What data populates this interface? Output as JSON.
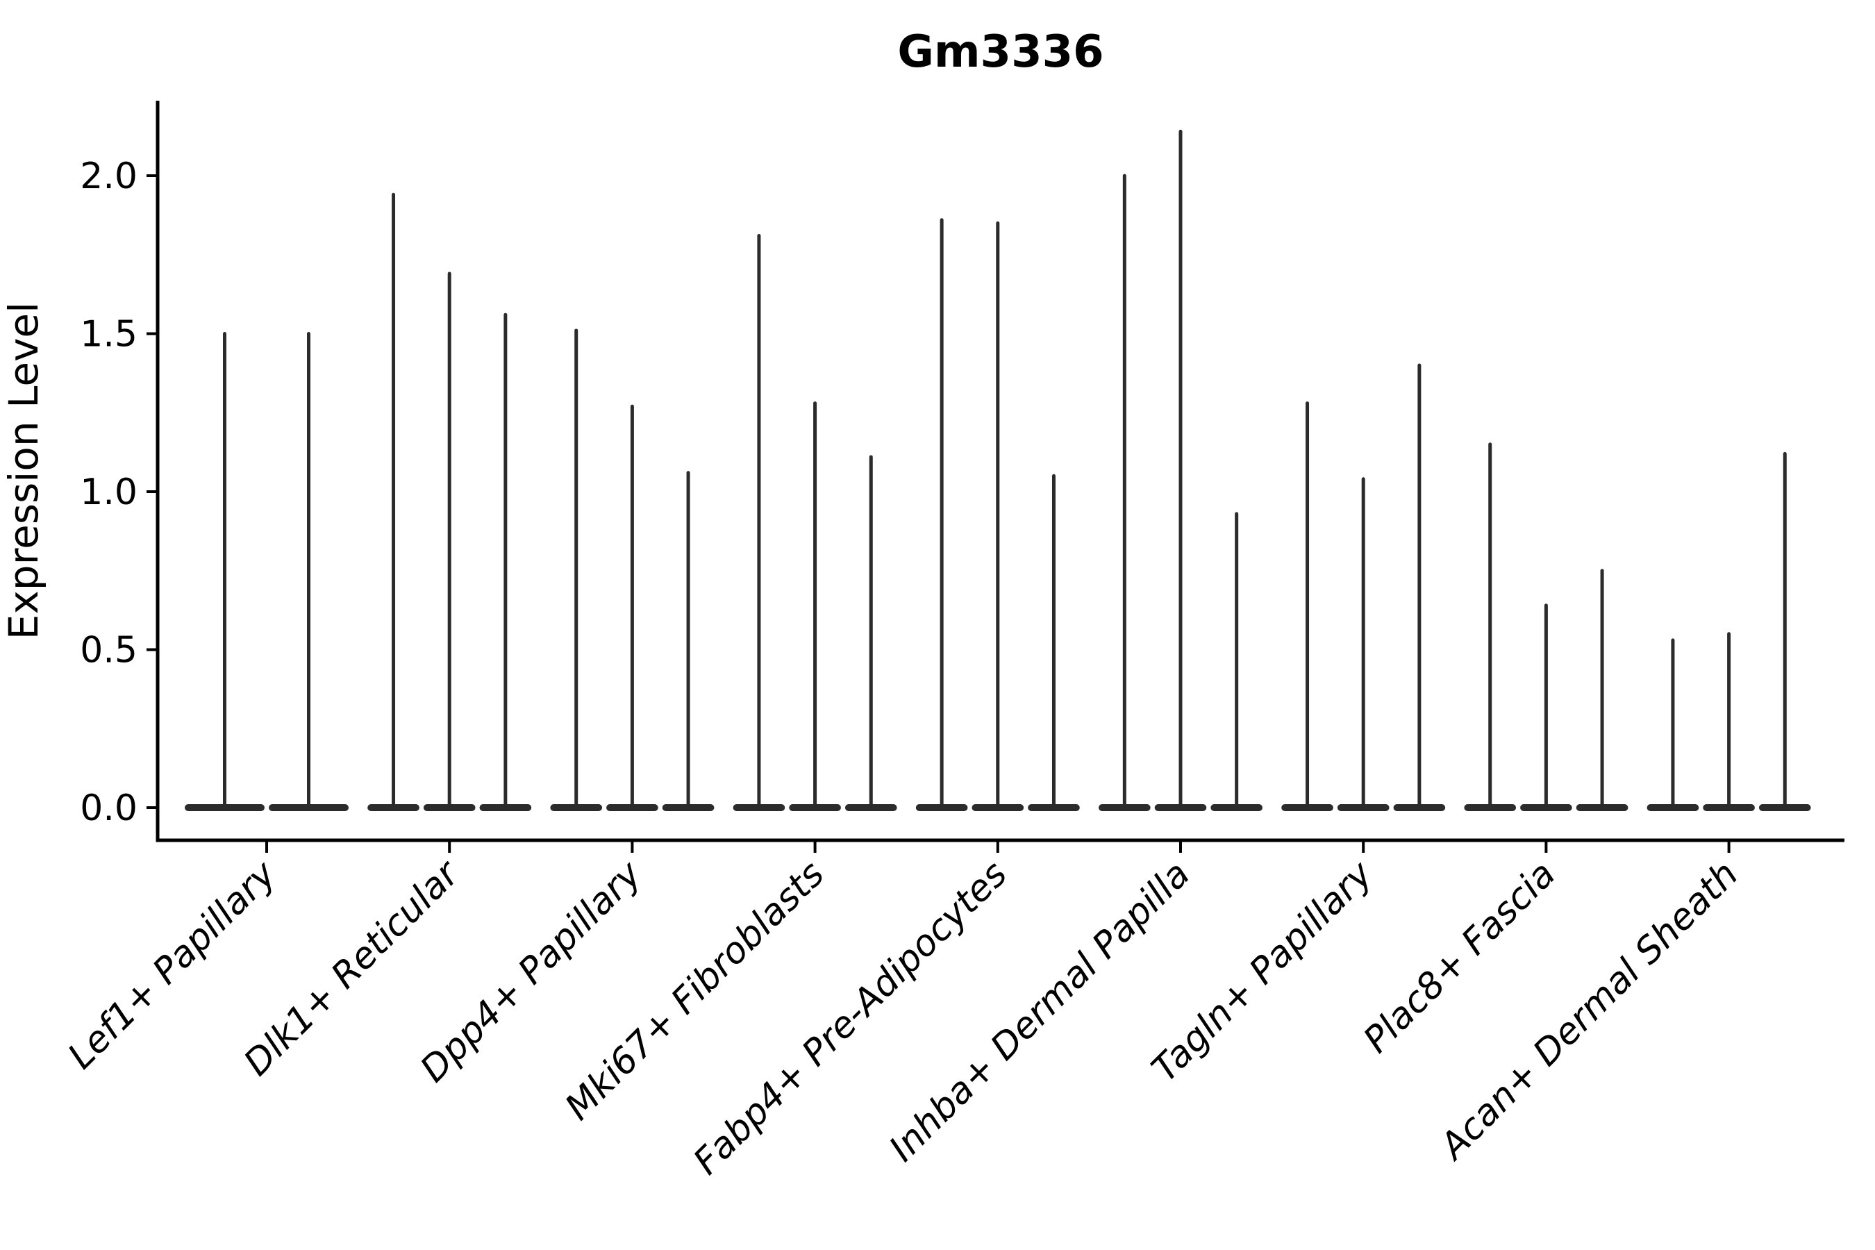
{
  "page": {
    "background": "#ffffff"
  },
  "chart": {
    "title": "Gm3336",
    "y_axis": {
      "label": "Expression Level",
      "tick_labels": [
        "0.0",
        "0.5",
        "1.0",
        "1.5",
        "2.0"
      ]
    },
    "x_axis": {
      "tick_labels": [
        "Lef1+ Papillary",
        "Dlk1+ Reticular",
        "Dpp4+ Papillary",
        "Mki67+ Fibroblasts",
        "Fabp4+ Pre-Adipocytes",
        "Inhba+ Dermal Papilla",
        "Tagln+ Papillary",
        "Plac8+ Fascia",
        "Acan+ Dermal Sheath"
      ]
    }
  },
  "chart_data": {
    "type": "violin",
    "title": "Gm3336",
    "xlabel": "",
    "ylabel": "Expression Level",
    "ylim": [
      -0.1,
      2.24
    ],
    "yticks": [
      0,
      0.5,
      1,
      1.5,
      2
    ],
    "grid": false,
    "legend": "none",
    "style_note": "Seurat-style VlnPlot of sparse gene expression: each violin collapses to a thin vertical spike (max expression) with a wide flat base at 0",
    "categories": [
      "Lef1+ Papillary",
      "Dlk1+ Reticular",
      "Dpp4+ Papillary",
      "Mki67+ Fibroblasts",
      "Fabp4+ Pre-Adipocytes",
      "Inhba+ Dermal Papilla",
      "Tagln+ Papillary",
      "Plac8+ Fascia",
      "Acan+ Dermal Sheath"
    ],
    "violins": [
      {
        "category": "Lef1+ Papillary",
        "spike_heights": [
          1.5,
          1.5
        ]
      },
      {
        "category": "Dlk1+ Reticular",
        "spike_heights": [
          1.94,
          1.69,
          1.56
        ]
      },
      {
        "category": "Dpp4+ Papillary",
        "spike_heights": [
          1.51,
          1.27,
          1.06
        ]
      },
      {
        "category": "Mki67+ Fibroblasts",
        "spike_heights": [
          1.81,
          1.28,
          1.11
        ]
      },
      {
        "category": "Fabp4+ Pre-Adipocytes",
        "spike_heights": [
          1.86,
          1.85,
          1.05
        ]
      },
      {
        "category": "Inhba+ Dermal Papilla",
        "spike_heights": [
          2.0,
          2.14,
          0.93
        ]
      },
      {
        "category": "Tagln+ Papillary",
        "spike_heights": [
          1.28,
          1.04,
          1.4
        ]
      },
      {
        "category": "Plac8+ Fascia",
        "spike_heights": [
          1.15,
          0.64,
          0.75
        ]
      },
      {
        "category": "Acan+ Dermal Sheath",
        "spike_heights": [
          0.53,
          0.55,
          1.12
        ]
      }
    ],
    "colors": {
      "violin": "#2b2b2b",
      "axis": "#000000",
      "text": "#000000"
    }
  }
}
